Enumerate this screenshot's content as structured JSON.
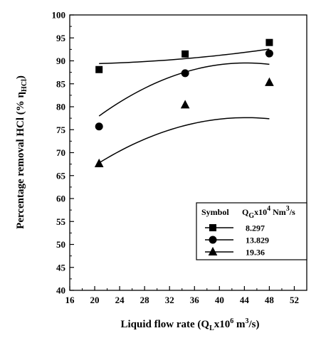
{
  "chart_data": {
    "type": "scatter",
    "xlabel": "Liquid flow rate (Q",
    "xlabel_sub": "L",
    "xlabel_mid": "x10",
    "xlabel_sup": "6",
    "xlabel_units": " m",
    "xlabel_sup2": "3",
    "xlabel_end": "/s)",
    "ylabel": "Percentage removal HCl (% η",
    "ylabel_sub": "HCl",
    "ylabel_end": ")",
    "xlim": [
      16,
      54
    ],
    "ylim": [
      40,
      100
    ],
    "x_ticks": [
      "16",
      "20",
      "24",
      "28",
      "32",
      "36",
      "40",
      "44",
      "48",
      "52"
    ],
    "y_ticks": [
      "40",
      "45",
      "50",
      "55",
      "60",
      "65",
      "70",
      "75",
      "80",
      "85",
      "90",
      "95",
      "100"
    ],
    "grid": false,
    "legend": {
      "placement": "bottom-right",
      "header_symbol": "Symbol",
      "header_q": "Q",
      "header_q_sub": "G",
      "header_mid": "x10",
      "header_sup": "4",
      "header_units": " Nm",
      "header_sup2": "3",
      "header_end": "/s"
    },
    "series": [
      {
        "name": "8.297",
        "marker": "square",
        "x": [
          20.7,
          34.5,
          48
        ],
        "y": [
          88.1,
          91.5,
          94.0
        ],
        "fit": [
          0.0028,
          -0.077,
          89.8
        ]
      },
      {
        "name": "13.829",
        "marker": "circle",
        "x": [
          20.7,
          34.5,
          48
        ],
        "y": [
          75.7,
          87.3,
          91.6
        ],
        "fit": [
          -0.0208,
          1.842,
          48.76
        ]
      },
      {
        "name": "19.36",
        "marker": "triangle",
        "x": [
          20.7,
          34.5,
          48
        ],
        "y": [
          67.6,
          80.4,
          85.3
        ],
        "fit": [
          -0.0177,
          1.568,
          42.9
        ]
      }
    ]
  }
}
